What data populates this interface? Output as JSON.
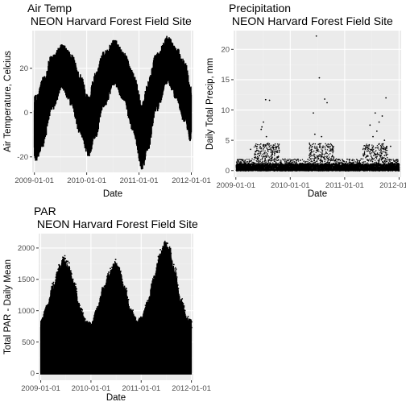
{
  "chart_data": [
    {
      "type": "scatter",
      "title_line1": "Air Temp",
      "title_line2": " NEON Harvard Forest Field Site",
      "xlabel": "Date",
      "ylabel": "Air Temperature, Celcius",
      "xlim": [
        "2008-12-17",
        "2012-01-15"
      ],
      "ylim": [
        -27,
        37
      ],
      "x_ticks": [
        "2009-01-01",
        "2010-01-01",
        "2011-01-01",
        "2012-01-01"
      ],
      "y_ticks": [
        -20,
        0,
        20
      ],
      "y_tick_labels": [
        "-20",
        "0",
        "20"
      ],
      "grid": true,
      "series": [
        {
          "color": "#000000",
          "style": "dense-scatter",
          "mean_curve": [
            [
              "2009-01-15",
              -8
            ],
            [
              "2009-03-01",
              -2
            ],
            [
              "2009-05-01",
              12
            ],
            [
              "2009-07-15",
              21
            ],
            [
              "2009-09-15",
              14
            ],
            [
              "2009-11-15",
              2
            ],
            [
              "2010-01-15",
              -6
            ],
            [
              "2010-03-01",
              0
            ],
            [
              "2010-05-01",
              14
            ],
            [
              "2010-07-15",
              22
            ],
            [
              "2010-09-15",
              16
            ],
            [
              "2010-11-15",
              3
            ],
            [
              "2011-01-25",
              -10
            ],
            [
              "2011-03-01",
              -3
            ],
            [
              "2011-05-01",
              13
            ],
            [
              "2011-07-20",
              24
            ],
            [
              "2011-09-15",
              17
            ],
            [
              "2011-11-15",
              6
            ],
            [
              "2012-01-01",
              -1
            ]
          ],
          "upper_curve": [
            [
              "2009-01-15",
              8
            ],
            [
              "2009-03-01",
              16
            ],
            [
              "2009-05-01",
              26
            ],
            [
              "2009-07-15",
              31
            ],
            [
              "2009-09-15",
              27
            ],
            [
              "2009-11-15",
              18
            ],
            [
              "2010-01-15",
              8
            ],
            [
              "2010-03-01",
              18
            ],
            [
              "2010-05-01",
              28
            ],
            [
              "2010-07-15",
              33
            ],
            [
              "2010-09-15",
              28
            ],
            [
              "2010-11-15",
              20
            ],
            [
              "2011-01-25",
              5
            ],
            [
              "2011-03-01",
              14
            ],
            [
              "2011-05-01",
              27
            ],
            [
              "2011-07-20",
              35
            ],
            [
              "2011-09-15",
              30
            ],
            [
              "2011-11-15",
              24
            ],
            [
              "2012-01-01",
              12
            ]
          ],
          "lower_curve": [
            [
              "2009-01-15",
              -22
            ],
            [
              "2009-03-01",
              -16
            ],
            [
              "2009-05-01",
              0
            ],
            [
              "2009-07-15",
              10
            ],
            [
              "2009-09-15",
              3
            ],
            [
              "2009-11-15",
              -10
            ],
            [
              "2010-01-15",
              -20
            ],
            [
              "2010-03-01",
              -12
            ],
            [
              "2010-05-01",
              2
            ],
            [
              "2010-07-15",
              12
            ],
            [
              "2010-09-15",
              5
            ],
            [
              "2010-11-15",
              -8
            ],
            [
              "2011-01-25",
              -26
            ],
            [
              "2011-03-01",
              -18
            ],
            [
              "2011-05-01",
              0
            ],
            [
              "2011-07-20",
              13
            ],
            [
              "2011-09-15",
              6
            ],
            [
              "2011-11-15",
              -5
            ],
            [
              "2012-01-01",
              -14
            ]
          ]
        }
      ]
    },
    {
      "type": "scatter",
      "title_line1": "Precipitation",
      "title_line2": " NEON Harvard Forest Field Site",
      "xlabel": "Date",
      "ylabel": "Daily Total Precip, mm",
      "xlim": [
        "2008-12-17",
        "2012-01-15"
      ],
      "ylim": [
        -1.1,
        23.1
      ],
      "x_ticks": [
        "2009-01-01",
        "2010-01-01",
        "2011-01-01",
        "2012-01-01"
      ],
      "y_ticks": [
        0,
        5,
        10,
        15,
        20
      ],
      "y_tick_labels": [
        "0",
        "5",
        "10",
        "15",
        "20"
      ],
      "grid": true,
      "series": [
        {
          "color": "#000000",
          "style": "sparse-scatter",
          "points": [
            [
              "2009-07-20",
              11.7
            ],
            [
              "2009-08-15",
              11.6
            ],
            [
              "2009-07-05",
              8.0
            ],
            [
              "2009-06-20",
              6.8
            ],
            [
              "2009-06-25",
              7.2
            ],
            [
              "2009-07-25",
              5.6
            ],
            [
              "2009-08-05",
              4.5
            ],
            [
              "2009-05-15",
              4.0
            ],
            [
              "2009-09-10",
              4.2
            ],
            [
              "2009-04-10",
              3.5
            ],
            [
              "2009-10-05",
              3.0
            ],
            [
              "2010-06-25",
              22.2
            ],
            [
              "2010-07-15",
              15.3
            ],
            [
              "2010-08-20",
              11.8
            ],
            [
              "2010-09-05",
              11.2
            ],
            [
              "2010-06-05",
              9.5
            ],
            [
              "2010-06-15",
              6.0
            ],
            [
              "2010-07-30",
              5.6
            ],
            [
              "2010-05-10",
              4.5
            ],
            [
              "2010-09-25",
              4.0
            ],
            [
              "2010-10-10",
              3.5
            ],
            [
              "2011-10-05",
              12.0
            ],
            [
              "2011-07-25",
              9.5
            ],
            [
              "2011-09-10",
              9.0
            ],
            [
              "2011-08-20",
              8.0
            ],
            [
              "2011-06-20",
              7.5
            ],
            [
              "2011-08-05",
              6.5
            ],
            [
              "2011-07-10",
              5.6
            ],
            [
              "2011-09-25",
              5.0
            ],
            [
              "2011-11-05",
              4.0
            ],
            [
              "2011-05-20",
              3.5
            ]
          ]
        }
      ]
    },
    {
      "type": "scatter",
      "title_line1": "PAR",
      "title_line2": " NEON Harvard Forest Field Site",
      "xlabel": "Date",
      "ylabel": "Total PAR - Daily Mean",
      "xlim": [
        "2008-12-17",
        "2012-01-15"
      ],
      "ylim": [
        -110,
        2230
      ],
      "x_ticks": [
        "2009-01-01",
        "2010-01-01",
        "2011-01-01",
        "2012-01-01"
      ],
      "y_ticks": [
        0,
        500,
        1000,
        1500,
        2000
      ],
      "y_tick_labels": [
        "0",
        "500",
        "1000",
        "1500",
        "2000"
      ],
      "grid": true,
      "series": [
        {
          "color": "#000000",
          "style": "dense-envelope",
          "upper_curve": [
            [
              "2009-01-01",
              850
            ],
            [
              "2009-02-15",
              1100
            ],
            [
              "2009-04-01",
              1450
            ],
            [
              "2009-05-20",
              1750
            ],
            [
              "2009-06-20",
              1870
            ],
            [
              "2009-07-20",
              1750
            ],
            [
              "2009-09-01",
              1450
            ],
            [
              "2009-10-15",
              1050
            ],
            [
              "2009-12-01",
              820
            ],
            [
              "2010-01-01",
              800
            ],
            [
              "2010-02-15",
              1050
            ],
            [
              "2010-04-01",
              1400
            ],
            [
              "2010-05-20",
              1650
            ],
            [
              "2010-06-25",
              1800
            ],
            [
              "2010-07-25",
              1700
            ],
            [
              "2010-09-01",
              1400
            ],
            [
              "2010-10-15",
              1050
            ],
            [
              "2010-12-01",
              850
            ],
            [
              "2011-01-01",
              900
            ],
            [
              "2011-02-15",
              1150
            ],
            [
              "2011-04-01",
              1550
            ],
            [
              "2011-05-20",
              1950
            ],
            [
              "2011-06-25",
              2120
            ],
            [
              "2011-07-25",
              2050
            ],
            [
              "2011-09-01",
              1700
            ],
            [
              "2011-10-15",
              1200
            ],
            [
              "2011-12-01",
              900
            ],
            [
              "2012-01-01",
              850
            ]
          ]
        }
      ]
    }
  ]
}
